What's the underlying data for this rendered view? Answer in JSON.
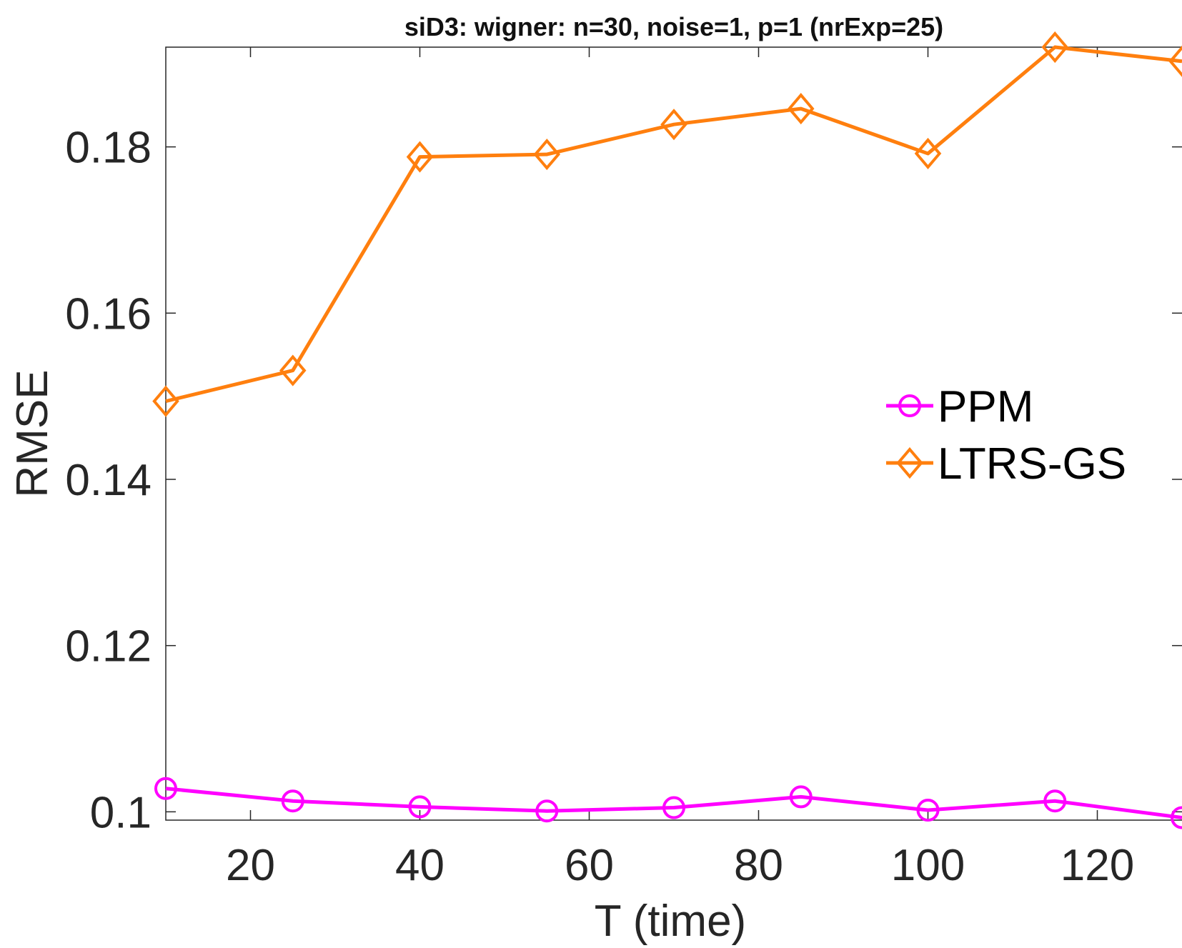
{
  "chart_data": {
    "type": "line",
    "title": "siD3: wigner: n=30, noise=1, p=1 (nrExp=25)",
    "xlabel": "T (time)",
    "ylabel": "RMSE",
    "xlim": [
      10,
      130
    ],
    "ylim": [
      0.099,
      0.192
    ],
    "xticks": [
      20,
      40,
      60,
      80,
      100,
      120
    ],
    "xtick_labels": [
      "20",
      "40",
      "60",
      "80",
      "100",
      "120"
    ],
    "yticks": [
      0.1,
      0.12,
      0.14,
      0.16,
      0.18
    ],
    "ytick_labels": [
      "0.1",
      "0.12",
      "0.14",
      "0.16",
      "0.18"
    ],
    "x": [
      10,
      25,
      40,
      55,
      70,
      85,
      100,
      115,
      130
    ],
    "series": [
      {
        "name": "PPM",
        "color": "#ff00ff",
        "marker": "circle",
        "values": [
          0.1028,
          0.1013,
          0.1006,
          0.1001,
          0.1005,
          0.1018,
          0.1002,
          0.1013,
          0.0993
        ]
      },
      {
        "name": "LTRS-GS",
        "color": "#ff7f0e",
        "marker": "diamond",
        "values": [
          0.1494,
          0.1531,
          0.1788,
          0.1791,
          0.1827,
          0.1846,
          0.1792,
          0.192,
          0.1903
        ]
      }
    ],
    "legend_position": "center-right",
    "grid": false
  }
}
